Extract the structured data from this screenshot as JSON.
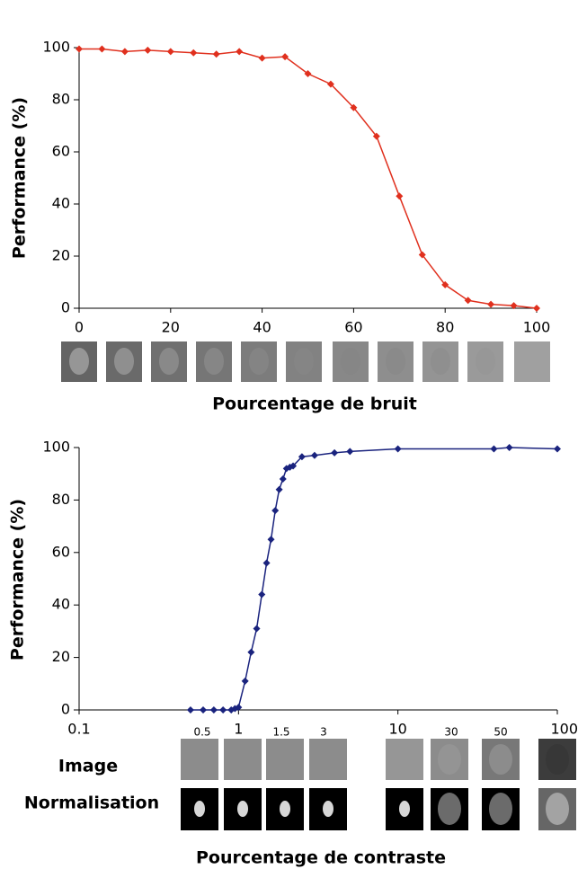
{
  "chart_data": [
    {
      "type": "line",
      "xlabel": "Pourcentage de bruit",
      "ylabel": "Performance (%)",
      "color": "#e0301e",
      "x": [
        0,
        5,
        10,
        15,
        20,
        25,
        30,
        35,
        40,
        45,
        50,
        55,
        60,
        65,
        70,
        75,
        80,
        85,
        90,
        95,
        100
      ],
      "values": [
        99.5,
        99.5,
        98.5,
        99,
        98.5,
        98,
        97.5,
        98.5,
        96,
        96.5,
        90,
        86,
        77,
        66,
        43,
        20.5,
        9,
        3,
        1.5,
        1,
        0
      ],
      "xlim": [
        0,
        100
      ],
      "xticks": [
        0,
        20,
        40,
        60,
        80,
        100
      ],
      "ylim": [
        0,
        100
      ],
      "yticks": [
        0,
        20,
        40,
        60,
        80,
        100
      ]
    },
    {
      "type": "line",
      "xlabel": "Pourcentage  de contraste",
      "ylabel": "Performance (%)",
      "color": "#1a237e",
      "xscale": "log",
      "x": [
        0.5,
        0.6,
        0.7,
        0.8,
        0.9,
        0.95,
        1,
        1.1,
        1.2,
        1.3,
        1.4,
        1.5,
        1.6,
        1.7,
        1.8,
        1.9,
        2,
        2.1,
        2.2,
        2.5,
        3,
        4,
        5,
        10,
        40,
        50,
        100
      ],
      "values": [
        0,
        0,
        0,
        0,
        0,
        0.5,
        1,
        11,
        22,
        31,
        44,
        56,
        65,
        76,
        84,
        88,
        92,
        92.5,
        93,
        96.5,
        97,
        98,
        98.5,
        99.5,
        99.5,
        100,
        99.5
      ],
      "xlim": [
        0.1,
        100
      ],
      "xticks": [
        0.1,
        1,
        10,
        100
      ],
      "ylim": [
        0,
        100
      ],
      "yticks": [
        0,
        20,
        40,
        60,
        80,
        100
      ],
      "image_captions": [
        "0.5",
        "1.5",
        "3",
        "30",
        "50"
      ],
      "row_labels": [
        "Image",
        "Normalisation"
      ]
    }
  ]
}
